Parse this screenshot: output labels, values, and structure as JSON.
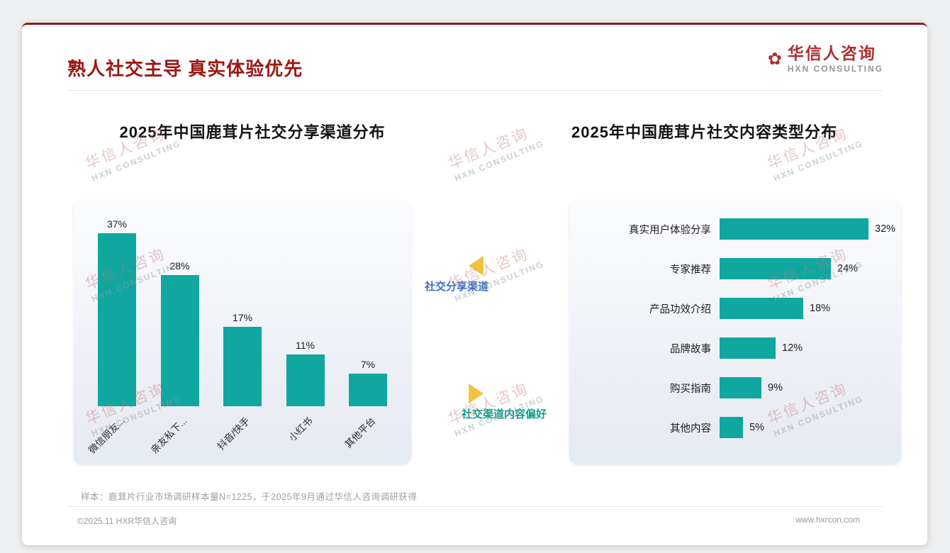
{
  "slide": {
    "title": "熟人社交主导 真实体验优先",
    "logo": {
      "name": "华信人咨询",
      "sub": "HXN CONSULTING",
      "icon": "flower-icon"
    },
    "watermark": {
      "line1": "华信人咨询",
      "line2": "HXN CONSULTING"
    },
    "annotations": {
      "left": "社交分享渠道",
      "right": "社交渠道内容偏好"
    },
    "note": "样本：鹿茸片行业市场调研样本量N=1225，于2025年9月通过华信人咨询调研获得",
    "footer": {
      "left": "©2025.11 HXR华信人咨询",
      "right": "www.hxrcon.com"
    }
  },
  "colors": {
    "accent_red": "#9A1814",
    "bar_teal": "#0FA7A0",
    "annotation_blue": "#3A6FC2",
    "annotation_teal": "#0F9C8C",
    "arrow_yellow": "#F2C13E"
  },
  "chart_data": [
    {
      "type": "bar",
      "orientation": "vertical",
      "title": "2025年中国鹿茸片社交分享渠道分布",
      "categories": [
        "微信朋友...",
        "亲友私下...",
        "抖音/快手",
        "小红书",
        "其他平台"
      ],
      "values": [
        37,
        28,
        17,
        11,
        7
      ],
      "value_labels": [
        "37%",
        "28%",
        "17%",
        "11%",
        "7%"
      ],
      "unit": "%",
      "ylim": [
        0,
        40
      ],
      "grid": false,
      "bar_color": "#0FA7A0"
    },
    {
      "type": "bar",
      "orientation": "horizontal",
      "title": "2025年中国鹿茸片社交内容类型分布",
      "categories": [
        "真实用户体验分享",
        "专家推荐",
        "产品功效介绍",
        "品牌故事",
        "购买指南",
        "其他内容"
      ],
      "values": [
        32,
        24,
        18,
        12,
        9,
        5
      ],
      "value_labels": [
        "32%",
        "24%",
        "18%",
        "12%",
        "9%",
        "5%"
      ],
      "unit": "%",
      "xlim": [
        0,
        35
      ],
      "grid": false,
      "bar_color": "#0FA7A0"
    }
  ]
}
